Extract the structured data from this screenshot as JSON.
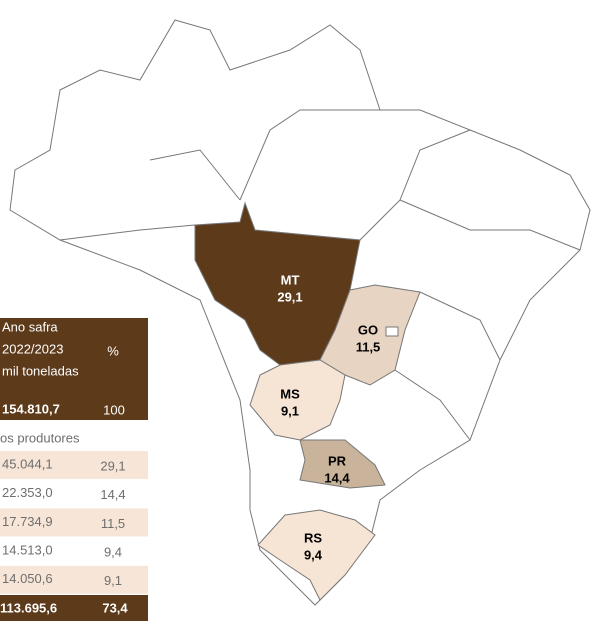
{
  "table": {
    "header": {
      "year_label": "Ano safra",
      "year": "2022/2023",
      "unit": "mil toneladas",
      "pct": "%",
      "total": "154.810,7",
      "total_pct": "100"
    },
    "section": "os produtores",
    "rows": [
      [
        "45.044,1",
        "29,1"
      ],
      [
        "22.353,0",
        "14,4"
      ],
      [
        "17.734,9",
        "11,5"
      ],
      [
        "14.513,0",
        "9,4"
      ],
      [
        "14.050,6",
        "9,1"
      ]
    ],
    "footer": [
      "113.695,6",
      "73,4"
    ]
  },
  "map": {
    "states": [
      {
        "code": "MT",
        "share": "29,1"
      },
      {
        "code": "GO",
        "share": "11,5"
      },
      {
        "code": "MS",
        "share": "9,1"
      },
      {
        "code": "PR",
        "share": "14,4"
      },
      {
        "code": "RS",
        "share": "9,4"
      }
    ]
  }
}
